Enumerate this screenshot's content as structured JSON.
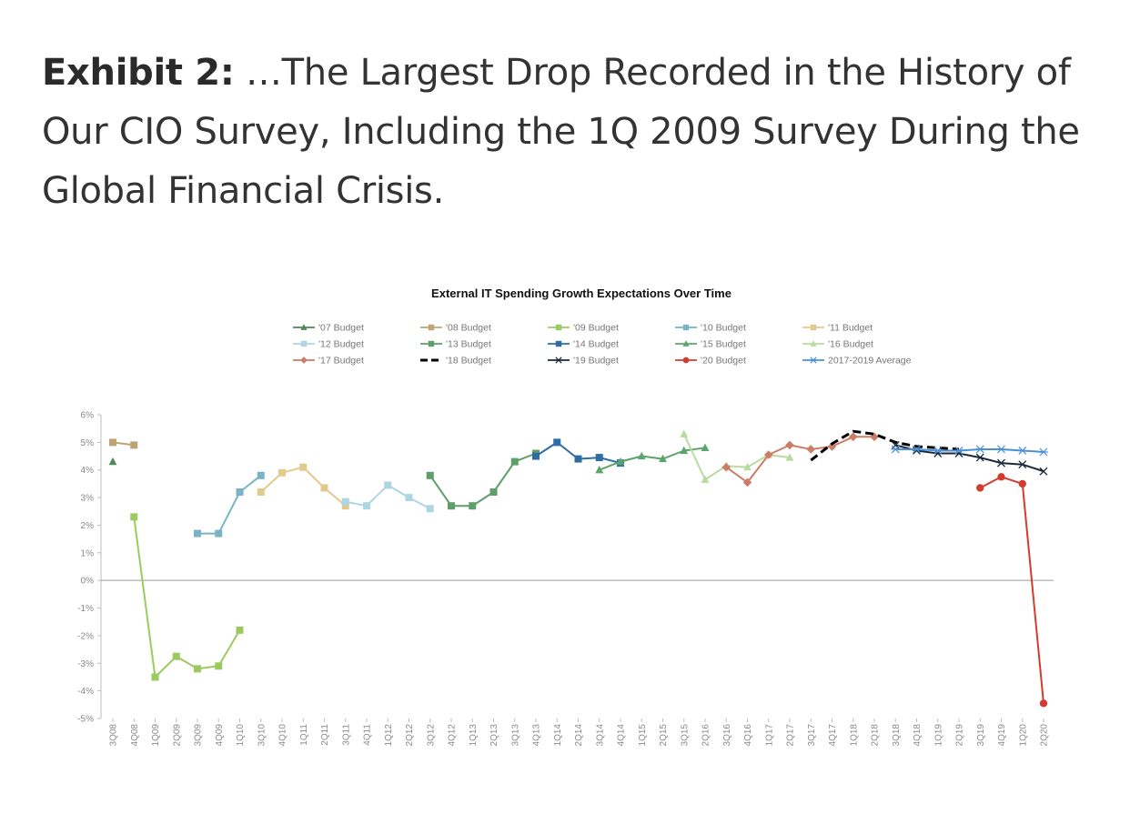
{
  "exhibit": {
    "label": "Exhibit 2:",
    "headline": " …The Largest Drop Recorded in the History of Our CIO Survey, Including the 1Q 2009 Survey During the Global Financial Crisis."
  },
  "chart_data": {
    "type": "line",
    "title": "External IT Spending Growth Expectations Over Time",
    "xlabel": "",
    "ylabel": "",
    "categories": [
      "3Q08",
      "4Q08",
      "1Q09",
      "2Q09",
      "3Q09",
      "4Q09",
      "1Q10",
      "3Q10",
      "4Q10",
      "1Q11",
      "2Q11",
      "3Q11",
      "4Q11",
      "1Q12",
      "2Q12",
      "3Q12",
      "4Q12",
      "1Q13",
      "2Q13",
      "3Q13",
      "4Q13",
      "1Q14",
      "2Q14",
      "3Q14",
      "4Q14",
      "1Q15",
      "2Q15",
      "3Q15",
      "2Q16",
      "3Q16",
      "4Q16",
      "1Q17",
      "2Q17",
      "3Q17",
      "4Q17",
      "1Q18",
      "2Q18",
      "3Q18",
      "4Q18",
      "1Q19",
      "2Q19",
      "3Q19",
      "4Q19",
      "1Q20",
      "2Q20"
    ],
    "y_ticks": [
      "6%",
      "5%",
      "4%",
      "3%",
      "2%",
      "1%",
      "0%",
      "-1%",
      "-2%",
      "-3%",
      "-4%",
      "-5%"
    ],
    "ylim": [
      -5,
      6
    ],
    "legend_position": "top",
    "grid": false,
    "series": [
      {
        "name": "'07 Budget",
        "color": "#4e8a55",
        "marker": "triangle",
        "dash": false,
        "points": [
          [
            "3Q08",
            4.3
          ]
        ]
      },
      {
        "name": "'08 Budget",
        "color": "#bfa374",
        "marker": "square",
        "dash": false,
        "points": [
          [
            "3Q08",
            5.0
          ],
          [
            "4Q08",
            4.9
          ]
        ]
      },
      {
        "name": "'09 Budget",
        "color": "#9bcb5f",
        "marker": "square",
        "dash": false,
        "points": [
          [
            "4Q08",
            2.3
          ],
          [
            "1Q09",
            -3.5
          ],
          [
            "2Q09",
            -2.75
          ],
          [
            "3Q09",
            -3.2
          ],
          [
            "4Q09",
            -3.1
          ],
          [
            "1Q10",
            -1.8
          ]
        ]
      },
      {
        "name": "'10 Budget",
        "color": "#79b3c5",
        "marker": "square",
        "dash": false,
        "points": [
          [
            "3Q09",
            1.7
          ],
          [
            "4Q09",
            1.7
          ],
          [
            "1Q10",
            3.2
          ],
          [
            "3Q10",
            3.8
          ]
        ]
      },
      {
        "name": "'11 Budget",
        "color": "#e2c98c",
        "marker": "square",
        "dash": false,
        "points": [
          [
            "3Q10",
            3.2
          ],
          [
            "4Q10",
            3.9
          ],
          [
            "1Q11",
            4.1
          ],
          [
            "2Q11",
            3.35
          ],
          [
            "3Q11",
            2.7
          ]
        ]
      },
      {
        "name": "'12 Budget",
        "color": "#add6e2",
        "marker": "square",
        "dash": false,
        "points": [
          [
            "3Q11",
            2.85
          ],
          [
            "4Q11",
            2.7
          ],
          [
            "1Q12",
            3.45
          ],
          [
            "2Q12",
            3.0
          ],
          [
            "3Q12",
            2.6
          ]
        ]
      },
      {
        "name": "'13 Budget",
        "color": "#5d9e6a",
        "marker": "square",
        "dash": false,
        "points": [
          [
            "3Q12",
            3.8
          ],
          [
            "4Q12",
            2.7
          ],
          [
            "1Q13",
            2.7
          ],
          [
            "2Q13",
            3.2
          ],
          [
            "3Q13",
            4.3
          ],
          [
            "4Q13",
            4.6
          ]
        ]
      },
      {
        "name": "'14 Budget",
        "color": "#2e6da4",
        "marker": "square",
        "dash": false,
        "points": [
          [
            "4Q13",
            4.5
          ],
          [
            "1Q14",
            5.0
          ],
          [
            "2Q14",
            4.4
          ],
          [
            "3Q14",
            4.45
          ],
          [
            "4Q14",
            4.25
          ]
        ]
      },
      {
        "name": "'15 Budget",
        "color": "#5aa56b",
        "marker": "triangle",
        "dash": false,
        "points": [
          [
            "3Q14",
            4.0
          ],
          [
            "4Q14",
            4.3
          ],
          [
            "1Q15",
            4.5
          ],
          [
            "2Q15",
            4.4
          ],
          [
            "3Q15",
            4.7
          ],
          [
            "2Q16",
            4.8
          ]
        ]
      },
      {
        "name": "'16 Budget",
        "color": "#b8dca0",
        "marker": "triangle",
        "dash": false,
        "points": [
          [
            "3Q15",
            5.3
          ],
          [
            "2Q16",
            3.65
          ],
          [
            "3Q16",
            4.15
          ],
          [
            "4Q16",
            4.1
          ],
          [
            "1Q17",
            4.55
          ],
          [
            "2Q17",
            4.45
          ]
        ]
      },
      {
        "name": "'17 Budget",
        "color": "#cc7d66",
        "marker": "diamond",
        "dash": false,
        "points": [
          [
            "3Q16",
            4.1
          ],
          [
            "4Q16",
            3.55
          ],
          [
            "1Q17",
            4.55
          ],
          [
            "2Q17",
            4.9
          ],
          [
            "3Q17",
            4.75
          ],
          [
            "4Q17",
            4.85
          ],
          [
            "1Q18",
            5.2
          ],
          [
            "2Q18",
            5.2
          ]
        ]
      },
      {
        "name": "'18 Budget",
        "color": "#000000",
        "marker": "none",
        "dash": true,
        "points": [
          [
            "3Q17",
            4.35
          ],
          [
            "4Q17",
            4.95
          ],
          [
            "1Q18",
            5.4
          ],
          [
            "2Q18",
            5.3
          ],
          [
            "3Q18",
            5.0
          ],
          [
            "4Q18",
            4.85
          ],
          [
            "1Q19",
            4.8
          ],
          [
            "2Q19",
            4.75
          ]
        ]
      },
      {
        "name": "'19 Budget",
        "color": "#1a2a3a",
        "marker": "x",
        "dash": false,
        "points": [
          [
            "3Q18",
            4.9
          ],
          [
            "4Q18",
            4.7
          ],
          [
            "1Q19",
            4.6
          ],
          [
            "2Q19",
            4.6
          ],
          [
            "3Q19",
            4.45
          ],
          [
            "4Q19",
            4.25
          ],
          [
            "1Q20",
            4.2
          ],
          [
            "2Q20",
            3.95
          ]
        ]
      },
      {
        "name": "'20 Budget",
        "color": "#d43b2e",
        "marker": "circle",
        "dash": false,
        "points": [
          [
            "3Q19",
            3.35
          ],
          [
            "4Q19",
            3.75
          ],
          [
            "1Q20",
            3.5
          ],
          [
            "2Q20",
            -4.45
          ]
        ]
      },
      {
        "name": "2017-2019 Average",
        "color": "#4a90d9",
        "marker": "asterisk",
        "dash": false,
        "points": [
          [
            "3Q18",
            4.75
          ],
          [
            "4Q18",
            4.75
          ],
          [
            "1Q19",
            4.7
          ],
          [
            "2Q19",
            4.7
          ],
          [
            "3Q19",
            4.75
          ],
          [
            "4Q19",
            4.75
          ],
          [
            "1Q20",
            4.7
          ],
          [
            "2Q20",
            4.65
          ]
        ]
      }
    ]
  }
}
